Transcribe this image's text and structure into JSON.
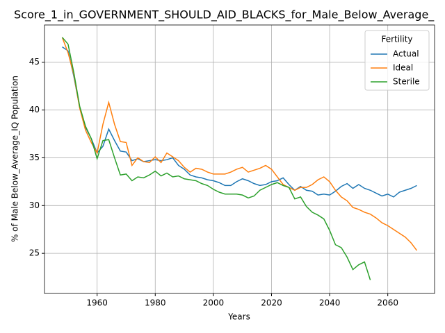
{
  "chart_data": {
    "type": "line",
    "title": "Score_1_in_GOVERNMENT_SHOULD_AID_BLACKS_for_Male_Below_Average_",
    "xlabel": "Years",
    "ylabel": "% of Male Below_Average_IQ Population",
    "legend_title": "Fertility",
    "legend": "upper right",
    "grid": true,
    "x": [
      1948,
      1950,
      1952,
      1954,
      1956,
      1958,
      1960,
      1962,
      1964,
      1966,
      1968,
      1970,
      1972,
      1974,
      1976,
      1978,
      1980,
      1982,
      1984,
      1986,
      1988,
      1990,
      1992,
      1994,
      1996,
      1998,
      2000,
      2002,
      2004,
      2006,
      2008,
      2010,
      2012,
      2014,
      2016,
      2018,
      2020,
      2022,
      2024,
      2026,
      2028,
      2030,
      2032,
      2034,
      2036,
      2038,
      2040,
      2042,
      2044,
      2046,
      2048,
      2050,
      2052,
      2054,
      2056,
      2058,
      2060,
      2062,
      2064,
      2066,
      2068,
      2070
    ],
    "series": [
      {
        "name": "Actual",
        "color": "#1f77b4",
        "values": [
          46.6,
          46.2,
          43.5,
          40.3,
          38.2,
          37.0,
          35.5,
          36.2,
          38.0,
          36.8,
          35.7,
          35.6,
          34.7,
          34.9,
          34.6,
          34.7,
          34.8,
          34.7,
          34.8,
          35.0,
          34.2,
          33.8,
          33.2,
          33.0,
          32.9,
          32.7,
          32.6,
          32.4,
          32.1,
          32.1,
          32.5,
          32.8,
          32.6,
          32.3,
          32.1,
          32.2,
          32.5,
          32.6,
          32.9,
          32.2,
          31.6,
          32.0,
          31.6,
          31.5,
          31.1,
          31.2,
          31.1,
          31.5,
          32.0,
          32.3,
          31.8,
          32.2,
          31.8,
          31.6,
          31.3,
          31.0,
          31.2,
          30.9,
          31.4,
          31.6,
          31.8,
          32.1
        ]
      },
      {
        "name": "Ideal",
        "color": "#ff7f0e",
        "values": [
          47.6,
          46.0,
          43.7,
          40.2,
          37.9,
          36.6,
          35.5,
          38.5,
          40.8,
          38.5,
          36.7,
          36.6,
          34.2,
          35.0,
          34.6,
          34.5,
          35.1,
          34.5,
          35.5,
          35.1,
          34.7,
          34.0,
          33.5,
          33.9,
          33.8,
          33.5,
          33.3,
          33.3,
          33.3,
          33.5,
          33.8,
          34.0,
          33.5,
          33.7,
          33.9,
          34.2,
          33.8,
          33.0,
          32.2,
          31.9,
          31.6,
          31.9,
          31.9,
          32.2,
          32.7,
          33.0,
          32.5,
          31.6,
          30.9,
          30.5,
          29.8,
          29.6,
          29.3,
          29.1,
          28.7,
          28.2,
          27.9,
          27.5,
          27.1,
          26.7,
          26.1,
          25.3
        ]
      },
      {
        "name": "Sterile",
        "color": "#2ca02c",
        "values": [
          47.6,
          46.9,
          43.9,
          40.4,
          38.3,
          37.0,
          34.9,
          36.8,
          36.9,
          35.0,
          33.2,
          33.3,
          32.6,
          33.0,
          32.9,
          33.2,
          33.6,
          33.1,
          33.4,
          33.0,
          33.1,
          32.8,
          32.7,
          32.6,
          32.3,
          32.1,
          31.7,
          31.4,
          31.2,
          31.2,
          31.2,
          31.1,
          30.8,
          31.0,
          31.6,
          31.9,
          32.2,
          32.4,
          32.1,
          31.9,
          30.7,
          30.9,
          29.9,
          29.3,
          29.0,
          28.6,
          27.4,
          25.9,
          25.6,
          24.6,
          23.3,
          23.8,
          24.1,
          22.2,
          null,
          null,
          null,
          null,
          null,
          null,
          null,
          null
        ]
      }
    ],
    "xlim": [
      1941.9,
      2076.1
    ],
    "xticks": [
      1960,
      1980,
      2000,
      2020,
      2040,
      2060
    ],
    "ylim": [
      20.8,
      48.9
    ],
    "yticks": [
      25,
      30,
      35,
      40,
      45
    ]
  }
}
